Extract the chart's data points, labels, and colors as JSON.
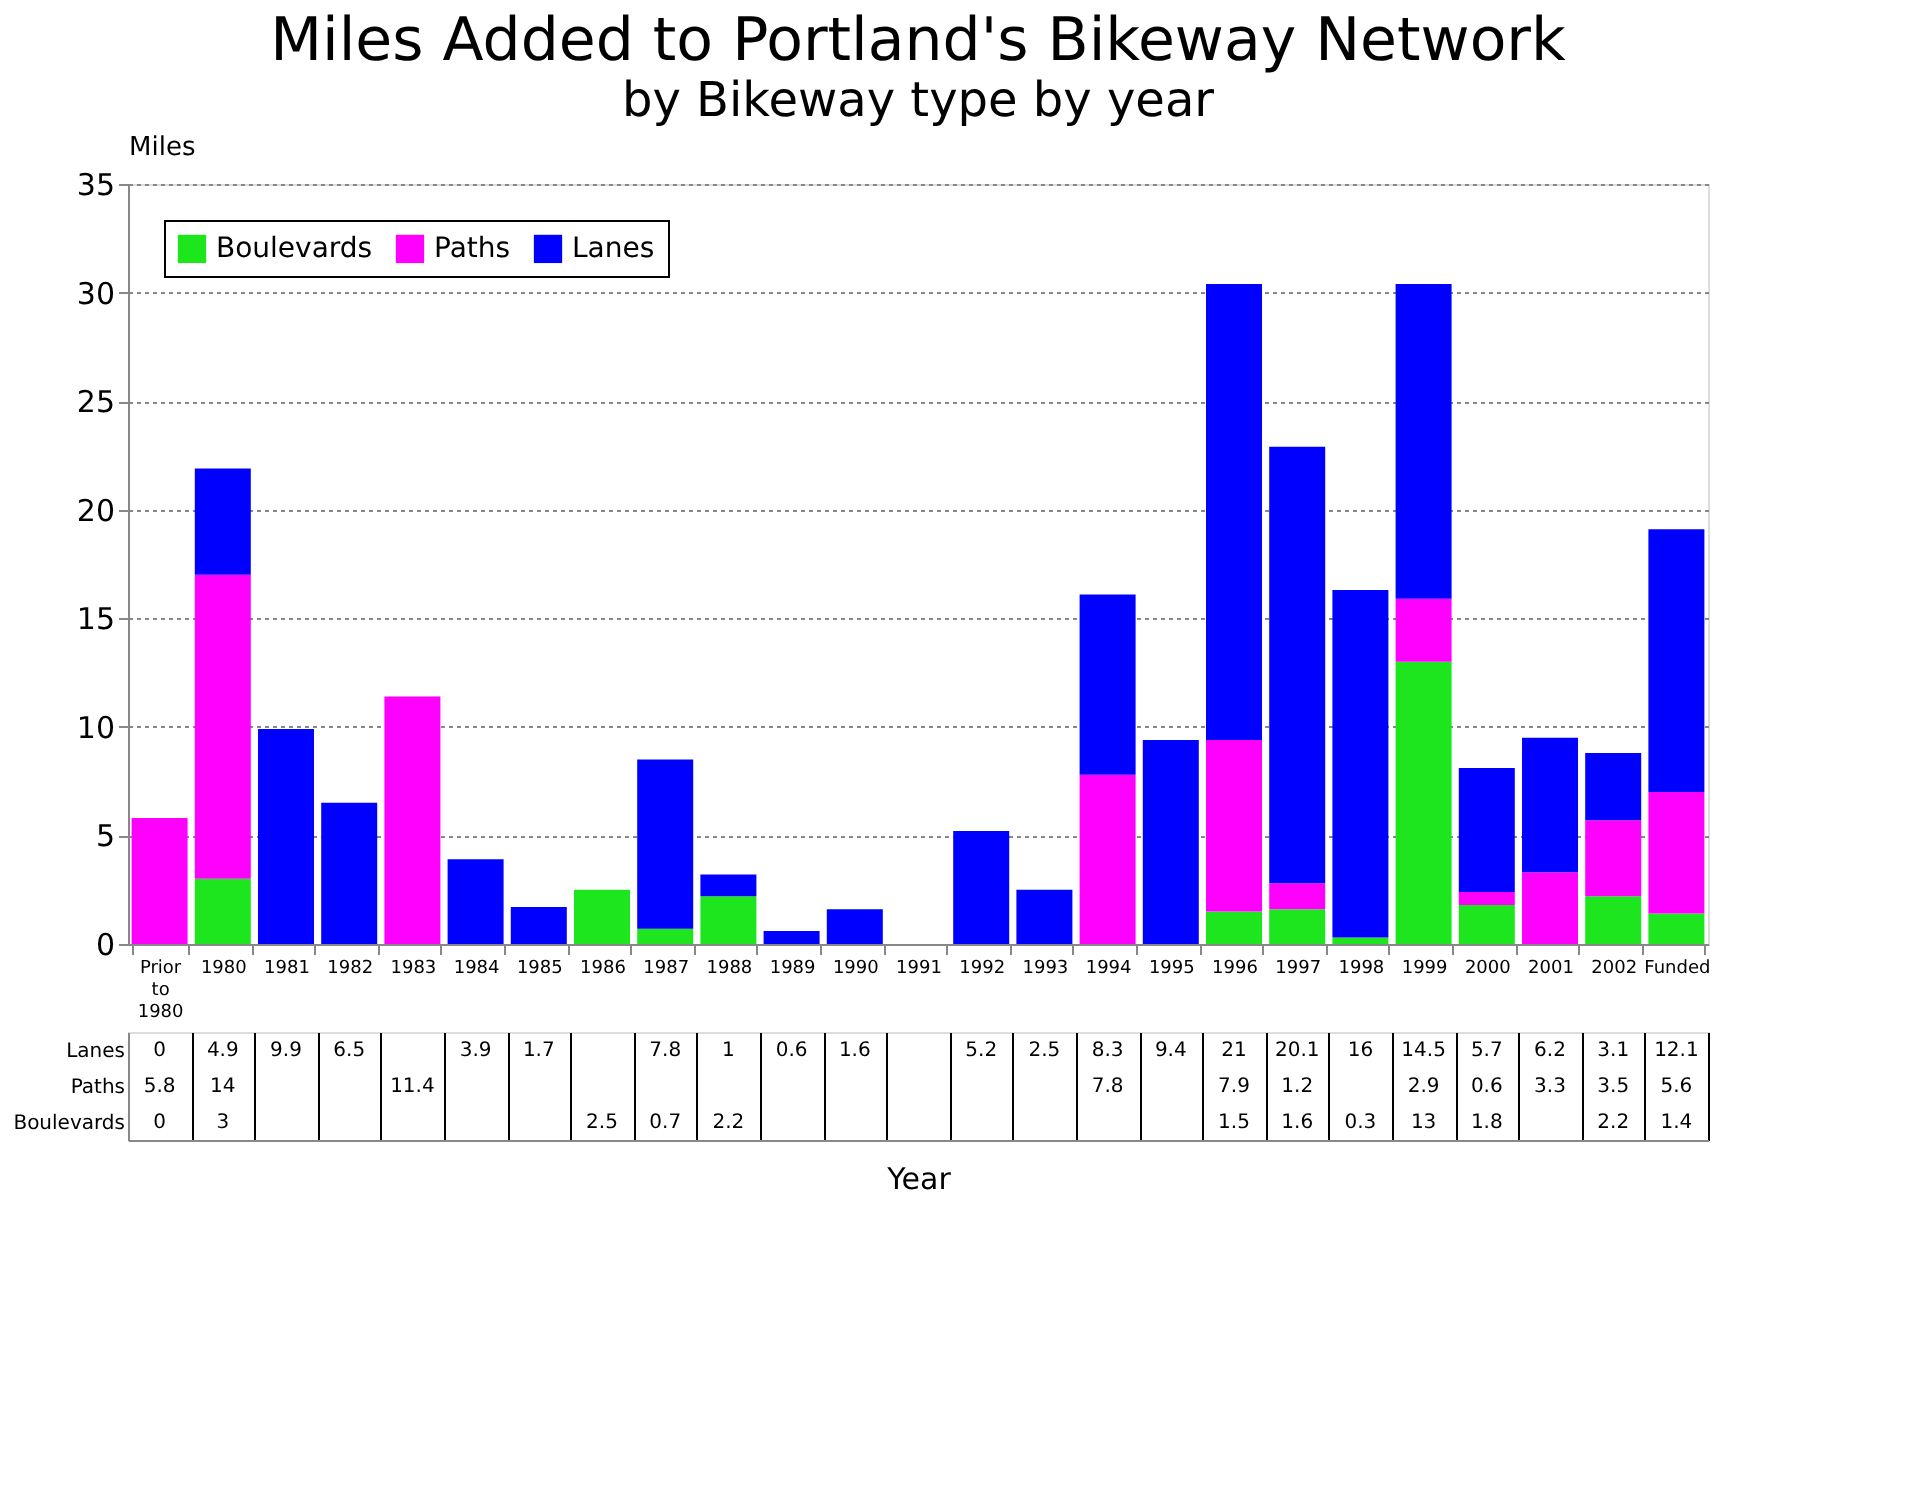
{
  "chart_data": {
    "type": "bar",
    "title": "Miles Added to Portland's Bikeway Network",
    "subtitle": "by Bikeway type by year",
    "ylabel": "Miles",
    "xlabel": "Year",
    "categories": [
      "Prior to 1980",
      "1980",
      "1981",
      "1982",
      "1983",
      "1984",
      "1985",
      "1986",
      "1987",
      "1988",
      "1989",
      "1990",
      "1991",
      "1992",
      "1993",
      "1994",
      "1995",
      "1996",
      "1997",
      "1998",
      "1999",
      "2000",
      "2001",
      "2002",
      "Funded"
    ],
    "stacked": true,
    "ylim": [
      0,
      35
    ],
    "yticks": [
      0,
      5,
      10,
      15,
      20,
      25,
      30,
      35
    ],
    "grid": "y",
    "legend": "top left",
    "data_labels": true,
    "series": [
      {
        "name": "Boulevards",
        "color": "#1ee61e",
        "values": [
          0,
          3,
          null,
          null,
          null,
          null,
          null,
          2.5,
          0.7,
          2.2,
          null,
          null,
          null,
          null,
          null,
          null,
          null,
          1.5,
          1.6,
          0.3,
          13,
          1.8,
          null,
          2.2,
          1.4
        ]
      },
      {
        "name": "Paths",
        "color": "#ff00ff",
        "values": [
          5.8,
          14,
          null,
          null,
          11.4,
          null,
          null,
          null,
          null,
          null,
          null,
          null,
          null,
          null,
          null,
          7.8,
          null,
          7.9,
          1.2,
          null,
          2.9,
          0.6,
          3.3,
          3.5,
          5.6
        ]
      },
      {
        "name": "Lanes",
        "color": "#0000ff",
        "values": [
          0,
          4.9,
          9.9,
          6.5,
          null,
          3.9,
          1.7,
          null,
          7.8,
          1,
          0.6,
          1.6,
          null,
          5.2,
          2.5,
          8.3,
          9.4,
          21,
          20.1,
          16,
          14.5,
          5.7,
          6.2,
          3.1,
          12.1
        ]
      }
    ]
  }
}
